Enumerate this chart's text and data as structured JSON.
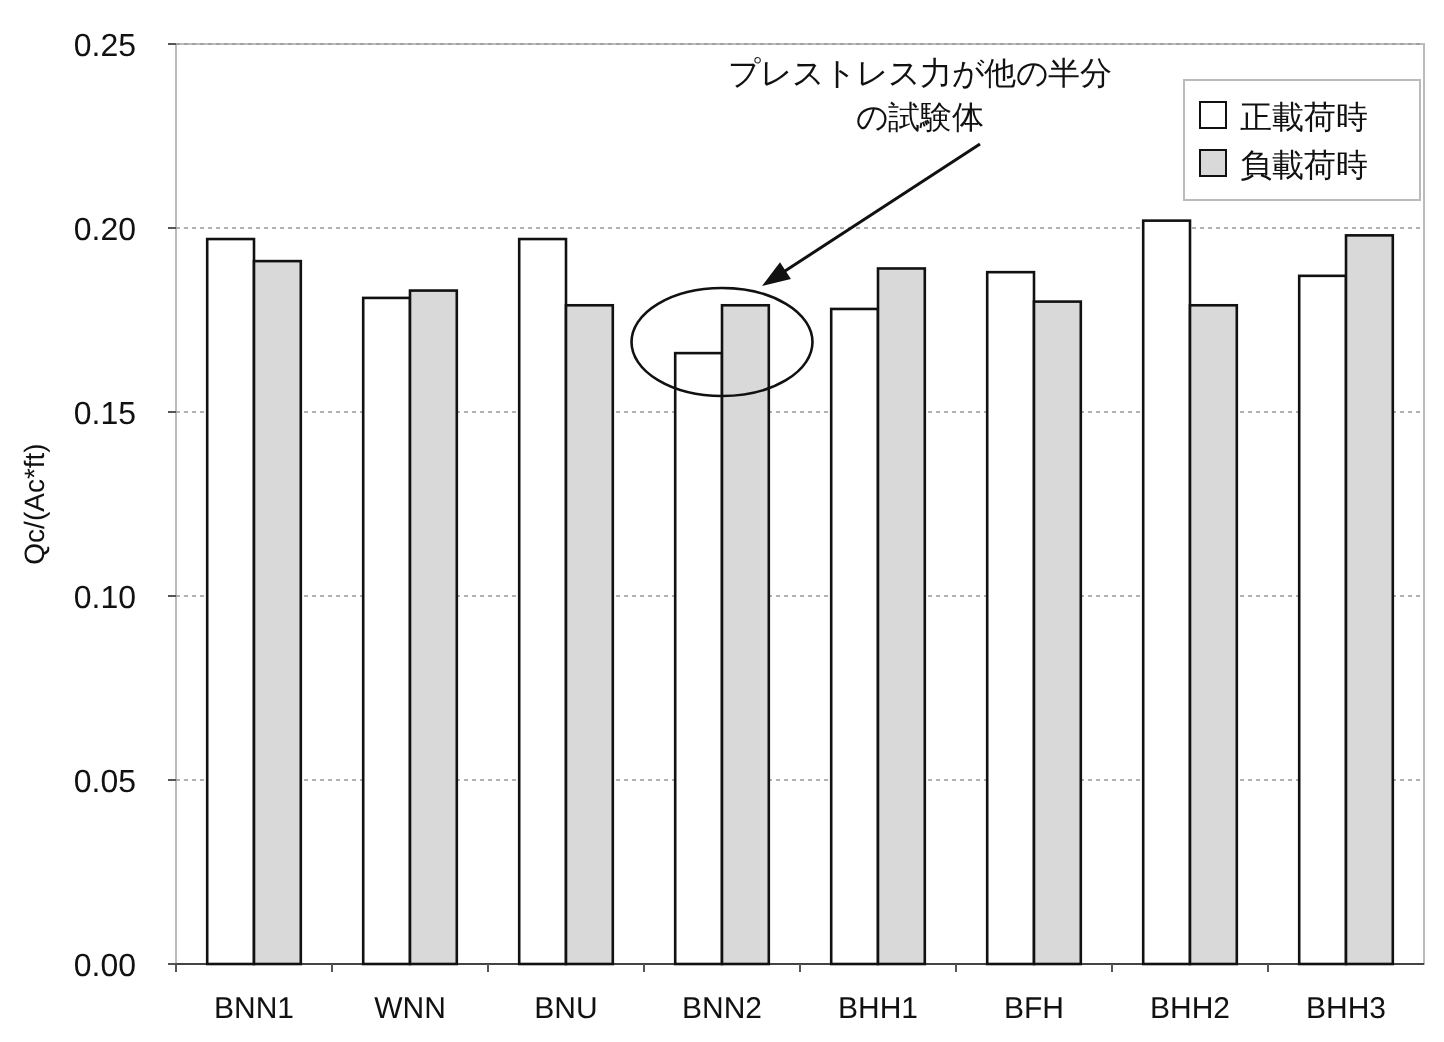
{
  "chart_data": {
    "type": "bar",
    "ylabel": "Qc/(Ac*ft)",
    "categories": [
      "BNN1",
      "WNN",
      "BNU",
      "BNN2",
      "BHH1",
      "BFH",
      "BHH2",
      "BHH3"
    ],
    "series": [
      {
        "name": "正載荷時",
        "color": "#ffffff",
        "values": [
          0.197,
          0.181,
          0.197,
          0.166,
          0.178,
          0.188,
          0.202,
          0.187
        ]
      },
      {
        "name": "負載荷時",
        "color": "#d9d9d9",
        "values": [
          0.191,
          0.183,
          0.179,
          0.179,
          0.189,
          0.18,
          0.179,
          0.198
        ]
      }
    ],
    "ylim": [
      0,
      0.25
    ],
    "yticks": [
      {
        "value": 0,
        "label": "0.00"
      },
      {
        "value": 0.05,
        "label": "0.05"
      },
      {
        "value": 0.1,
        "label": "0.10"
      },
      {
        "value": 0.15,
        "label": "0.15"
      },
      {
        "value": 0.2,
        "label": "0.20"
      },
      {
        "value": 0.25,
        "label": "0.25"
      }
    ],
    "grid": "y",
    "legend": "top right",
    "annotations": [
      "プレストレス力が他の半分の試験体"
    ]
  }
}
